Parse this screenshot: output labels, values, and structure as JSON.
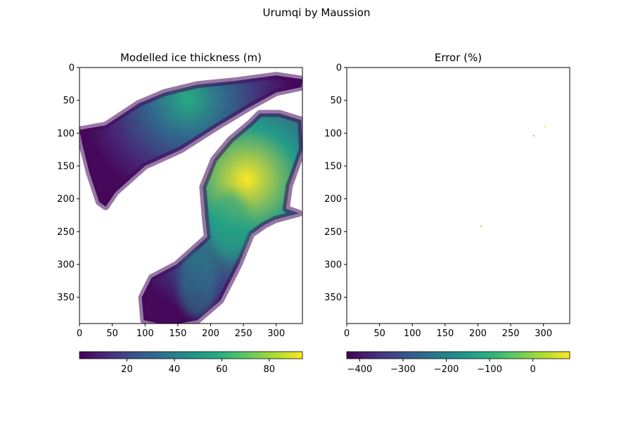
{
  "figure": {
    "suptitle": "Urumqi by Maussion"
  },
  "chart_data": [
    {
      "type": "heatmap",
      "title": "Modelled ice thickness (m)",
      "xlabel": "",
      "ylabel": "",
      "xlim": [
        0,
        340
      ],
      "ylim": [
        390,
        0
      ],
      "x_ticks": [
        0,
        50,
        100,
        150,
        200,
        250,
        300
      ],
      "y_ticks": [
        0,
        50,
        100,
        150,
        200,
        250,
        300,
        350
      ],
      "colormap": "viridis",
      "colorbar": {
        "range": [
          0,
          94
        ],
        "ticks": [
          20,
          40,
          60,
          80
        ],
        "position": "bottom"
      },
      "regions": [
        {
          "name": "northern glacier",
          "outline": [
            [
              0,
              95
            ],
            [
              40,
              88
            ],
            [
              90,
              55
            ],
            [
              130,
              38
            ],
            [
              180,
              26
            ],
            [
              240,
              20
            ],
            [
              300,
              12
            ],
            [
              340,
              18
            ],
            [
              338,
              30
            ],
            [
              300,
              38
            ],
            [
              260,
              60
            ],
            [
              210,
              90
            ],
            [
              155,
              125
            ],
            [
              100,
              150
            ],
            [
              55,
              190
            ],
            [
              40,
              212
            ],
            [
              30,
              205
            ],
            [
              15,
              160
            ],
            [
              5,
              120
            ]
          ],
          "peak": {
            "x": 165,
            "y": 48,
            "value": 58
          }
        },
        {
          "name": "southern glacier",
          "outline": [
            [
              275,
              70
            ],
            [
              305,
              70
            ],
            [
              338,
              80
            ],
            [
              340,
              125
            ],
            [
              320,
              180
            ],
            [
              315,
              215
            ],
            [
              335,
              222
            ],
            [
              312,
              228
            ],
            [
              298,
              232
            ],
            [
              282,
              240
            ],
            [
              262,
              254
            ],
            [
              243,
              300
            ],
            [
              215,
              355
            ],
            [
              180,
              385
            ],
            [
              135,
              393
            ],
            [
              98,
              385
            ],
            [
              95,
              350
            ],
            [
              110,
              320
            ],
            [
              148,
              300
            ],
            [
              195,
              258
            ],
            [
              192,
              230
            ],
            [
              188,
              182
            ],
            [
              205,
              140
            ],
            [
              230,
              110
            ],
            [
              260,
              85
            ]
          ],
          "peak": {
            "x": 255,
            "y": 170,
            "value": 94
          }
        }
      ],
      "secondary_peaks": [
        {
          "x": 230,
          "y": 240,
          "value": 55
        },
        {
          "x": 180,
          "y": 330,
          "value": 42
        }
      ]
    },
    {
      "type": "heatmap",
      "title": "Error (%)",
      "xlabel": "",
      "ylabel": "",
      "xlim": [
        0,
        340
      ],
      "ylim": [
        390,
        0
      ],
      "x_ticks": [
        0,
        50,
        100,
        150,
        200,
        250,
        300
      ],
      "y_ticks": [
        0,
        50,
        100,
        150,
        200,
        250,
        300,
        350
      ],
      "colormap": "viridis",
      "colorbar": {
        "range": [
          -430,
          85
        ],
        "ticks": [
          -400,
          -300,
          -200,
          -100,
          0
        ],
        "tick_labels": [
          "−400",
          "−300",
          "−200",
          "−100",
          "0"
        ],
        "position": "bottom"
      },
      "points": [
        {
          "x": 302,
          "y": 90,
          "value": 80
        },
        {
          "x": 285,
          "y": 104,
          "value": 5
        },
        {
          "x": 205,
          "y": 242,
          "value": 20
        }
      ]
    }
  ]
}
